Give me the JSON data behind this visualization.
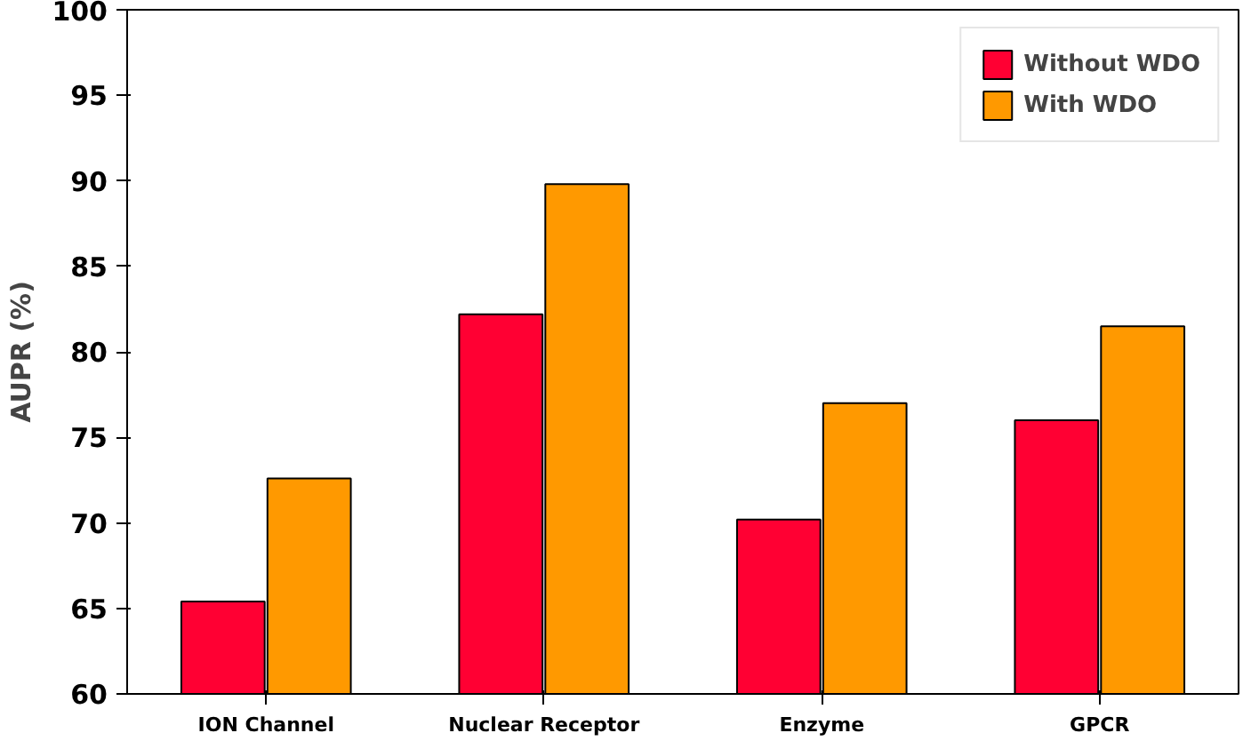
{
  "chart_data": {
    "type": "bar",
    "ylabel": "AUPR (%)",
    "categories": [
      "ION Channel",
      "Nuclear Receptor",
      "Enzyme",
      "GPCR"
    ],
    "series": [
      {
        "name": "Without WDO",
        "color": "#ff0033",
        "values": [
          65.4,
          82.2,
          70.2,
          76.0
        ]
      },
      {
        "name": "With WDO",
        "color": "#ff9900",
        "values": [
          72.6,
          89.8,
          77.0,
          81.5
        ]
      }
    ],
    "ylim": [
      60,
      100
    ],
    "yticks": [
      60,
      65,
      70,
      75,
      80,
      85,
      90,
      95,
      100
    ],
    "grid": false,
    "legend": "top right"
  }
}
